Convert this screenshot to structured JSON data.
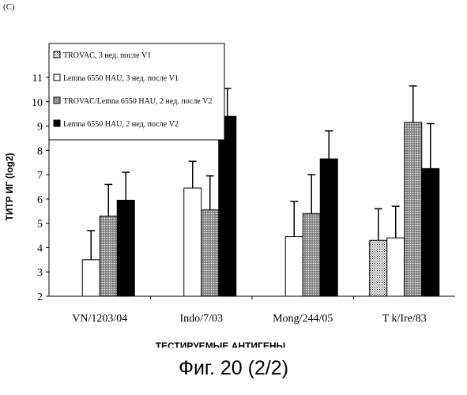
{
  "panel_label": "(C)",
  "caption": "Фиг. 20 (2/2)",
  "chart_data": {
    "type": "bar",
    "ylabel": "ТИТР ИГ (log2)",
    "xlabel": "ТЕСТИРУЕМЫЕ АНТИГЕНЫ",
    "ylim": [
      2,
      11
    ],
    "yticks": [
      2,
      3,
      4,
      5,
      6,
      7,
      8,
      9,
      10,
      11
    ],
    "grid": false,
    "legend_position": "top-left",
    "categories": [
      "VN/1203/04",
      "Indo/7/03",
      "Mong/244/05",
      "T k/Ire/83"
    ],
    "series": [
      {
        "name": "TROVAC, 3 нед. после V1",
        "fill": "dotted",
        "values": [
          null,
          null,
          null,
          4.3
        ],
        "errors": [
          null,
          null,
          null,
          1.3
        ]
      },
      {
        "name": "Lemna 6550 HAU, 3 нед. после V1",
        "fill": "white",
        "values": [
          3.5,
          6.45,
          4.45,
          4.4
        ],
        "errors": [
          1.2,
          1.1,
          1.45,
          1.3
        ]
      },
      {
        "name": "TROVAC/Lemna 6550 HAU, 2 нед. после V2",
        "fill": "crosshatch",
        "values": [
          5.3,
          5.55,
          5.4,
          9.15
        ],
        "errors": [
          1.3,
          1.4,
          1.6,
          1.5
        ]
      },
      {
        "name": "Lemna 6550 HAU, 2 нед. после V2",
        "fill": "black",
        "values": [
          5.95,
          9.4,
          7.65,
          7.25
        ],
        "errors": [
          1.15,
          1.15,
          1.15,
          1.85
        ]
      }
    ]
  }
}
